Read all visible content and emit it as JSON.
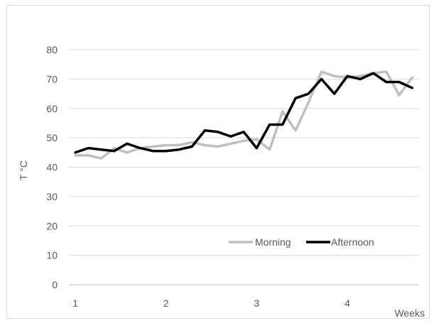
{
  "chart_data": {
    "type": "line",
    "xlabel": "Weeks",
    "ylabel": "T °C",
    "ylim": [
      0,
      80
    ],
    "yticks": [
      0,
      10,
      20,
      30,
      40,
      50,
      60,
      70,
      80
    ],
    "xticks": [
      1,
      2,
      3,
      4
    ],
    "grid": "horizontal",
    "legend_position": "bottom-right",
    "series": [
      {
        "name": "Morning",
        "color": "#bfbfbf",
        "x": [
          1.0,
          1.143,
          1.286,
          1.429,
          1.571,
          1.714,
          1.857,
          2.0,
          2.143,
          2.286,
          2.429,
          2.571,
          2.714,
          2.857,
          3.0,
          3.143,
          3.286,
          3.429,
          3.571,
          3.714,
          3.857,
          4.0,
          4.143,
          4.286,
          4.429,
          4.571,
          4.714
        ],
        "values": [
          44,
          44,
          43,
          46.5,
          45,
          46.5,
          47,
          47.5,
          47.5,
          48.5,
          47.5,
          47,
          48,
          49,
          49.5,
          46,
          59,
          52.5,
          62,
          72.5,
          71,
          70.5,
          71,
          72,
          72.5,
          64.5,
          70.5
        ]
      },
      {
        "name": "Afternoon",
        "color": "#000000",
        "x": [
          1.0,
          1.143,
          1.286,
          1.429,
          1.571,
          1.714,
          1.857,
          2.0,
          2.143,
          2.286,
          2.429,
          2.571,
          2.714,
          2.857,
          3.0,
          3.143,
          3.286,
          3.429,
          3.571,
          3.714,
          3.857,
          4.0,
          4.143,
          4.286,
          4.429,
          4.571,
          4.714
        ],
        "values": [
          45,
          46.5,
          46,
          45.5,
          48,
          46.5,
          45.5,
          45.5,
          46,
          47,
          52.5,
          52,
          50.5,
          52,
          46.5,
          54.5,
          54.5,
          63.5,
          65,
          70,
          65,
          71,
          70,
          72,
          69,
          69,
          67
        ]
      }
    ]
  }
}
